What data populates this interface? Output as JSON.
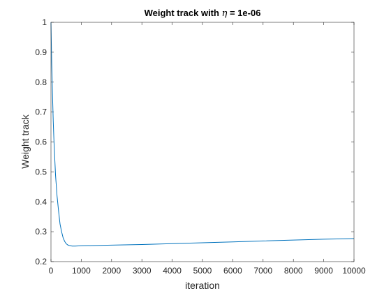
{
  "chart_data": {
    "type": "line",
    "title": {
      "prefix": "Weight track with ",
      "symbol": "η",
      "suffix": " = 1e-06"
    },
    "xlabel": "iteration",
    "ylabel": "Weight track",
    "xlim": [
      0,
      10000
    ],
    "ylim": [
      0.2,
      1
    ],
    "xticks": [
      0,
      1000,
      2000,
      3000,
      4000,
      5000,
      6000,
      7000,
      8000,
      9000,
      10000
    ],
    "yticks": [
      0.2,
      0.3,
      0.4,
      0.5,
      0.6,
      0.7,
      0.8,
      0.9,
      1
    ],
    "xtick_labels": [
      "0",
      "1000",
      "2000",
      "3000",
      "4000",
      "5000",
      "6000",
      "7000",
      "8000",
      "9000",
      "10000"
    ],
    "ytick_labels": [
      "0.2",
      "0.3",
      "0.4",
      "0.5",
      "0.6",
      "0.7",
      "0.8",
      "0.9",
      "1"
    ],
    "grid": false,
    "box": true,
    "series": [
      {
        "color": "#0072BD",
        "x": [
          0,
          10,
          25,
          50,
          75,
          100,
          150,
          200,
          250,
          300,
          350,
          400,
          450,
          500,
          550,
          600,
          700,
          800,
          1000,
          1500,
          2000,
          3000,
          4000,
          5000,
          6000,
          7000,
          8000,
          9000,
          10000
        ],
        "y": [
          1.0,
          0.94,
          0.86,
          0.76,
          0.67,
          0.6,
          0.49,
          0.42,
          0.37,
          0.325,
          0.3,
          0.28,
          0.268,
          0.26,
          0.256,
          0.254,
          0.252,
          0.252,
          0.253,
          0.254,
          0.255,
          0.257,
          0.26,
          0.263,
          0.266,
          0.269,
          0.272,
          0.275,
          0.277
        ]
      }
    ]
  }
}
